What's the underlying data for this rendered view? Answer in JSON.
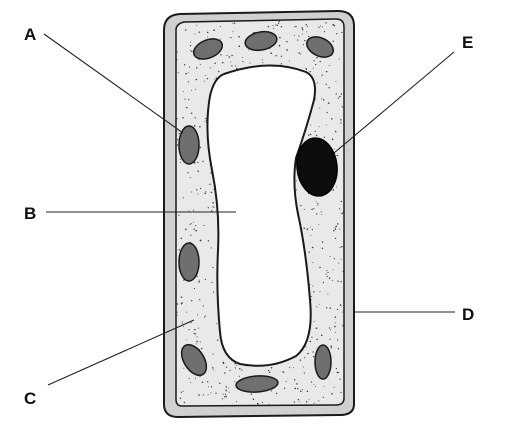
{
  "labels": {
    "a": "A",
    "b": "B",
    "c": "C",
    "d": "D",
    "e": "E"
  },
  "colors": {
    "cell_wall_fill": "#d0d0d0",
    "cell_wall_stroke": "#1a1a1a",
    "cytoplasm_fill": "#e9e9e9",
    "stipple": "#3a3a3a",
    "vacuole_fill": "#ffffff",
    "chloroplast_fill": "#6f6f6f",
    "nucleus_fill": "#0d0d0d",
    "leader_line": "#222222"
  }
}
